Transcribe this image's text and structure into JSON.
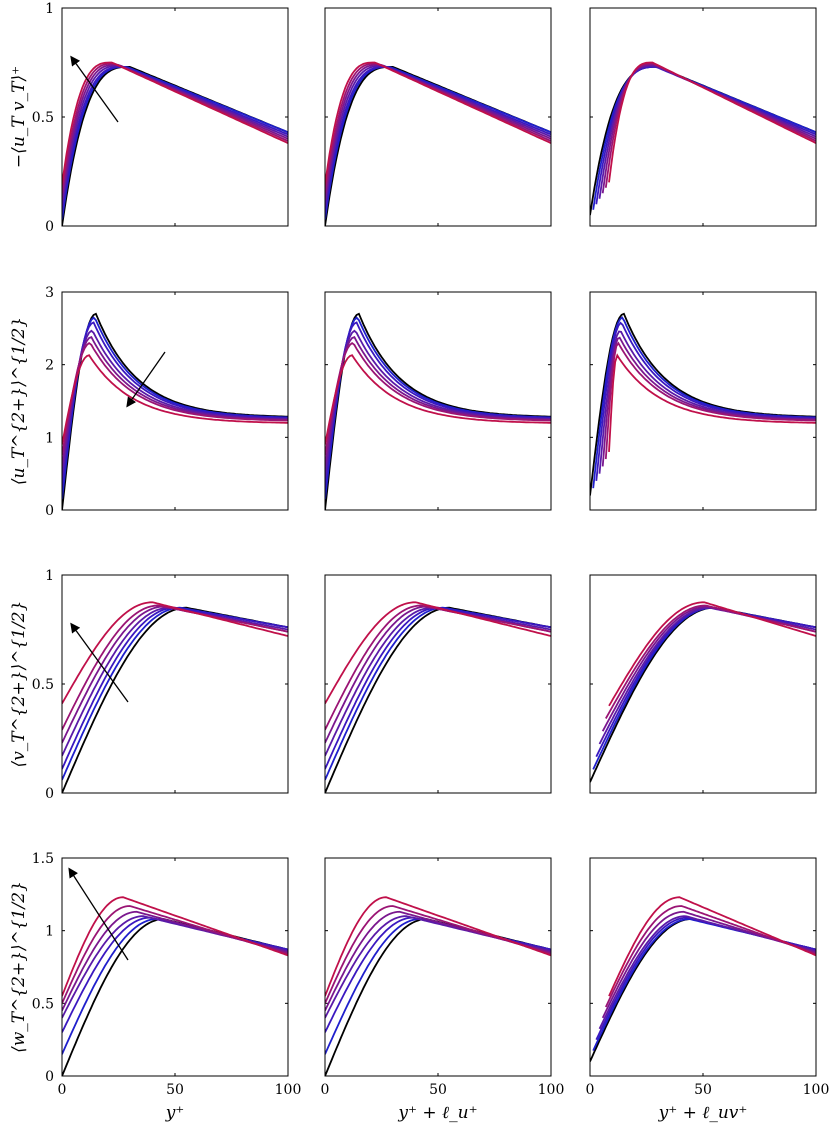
{
  "chart_data": {
    "type": "line",
    "layout": "4x3 grid of line plots",
    "colors": {
      "series": [
        "#000000",
        "#1f1fcc",
        "#3a18c0",
        "#5a1aa8",
        "#7a178e",
        "#9a1474",
        "#c0104a"
      ],
      "arrow": "#000000",
      "frame": "#000000"
    },
    "row_labels": [
      "−⟨u_T v_T⟩⁺",
      "⟨u_T^{2+}⟩^{1/2}",
      "⟨v_T^{2+}⟩^{1/2}",
      "⟨w_T^{2+}⟩^{1/2}"
    ],
    "column_labels": [
      "y⁺",
      "y⁺ + ℓ_u⁺",
      "y⁺ + ℓ_uv⁺"
    ],
    "x_range": [
      0,
      100
    ],
    "x_ticks": [
      "0",
      "50",
      "100"
    ],
    "rows": [
      {
        "ylim": [
          0,
          1
        ],
        "y_ticks": [
          "0",
          "0.5",
          "1"
        ]
      },
      {
        "ylim": [
          0,
          3
        ],
        "y_ticks": [
          "0",
          "1",
          "2",
          "3"
        ]
      },
      {
        "ylim": [
          0,
          1
        ],
        "y_ticks": [
          "0",
          "0.5",
          "1"
        ]
      },
      {
        "ylim": [
          0,
          1.5
        ],
        "y_ticks": [
          "0",
          "0.5",
          "1",
          "1.5"
        ]
      }
    ],
    "series_summary": [
      {
        "row": 1,
        "wall_values": [
          0,
          0.03,
          0.06,
          0.09,
          0.12,
          0.15,
          0.19
        ],
        "peak_values": [
          0.73,
          0.73,
          0.73,
          0.735,
          0.74,
          0.745,
          0.75
        ],
        "values_at_100": [
          0.43,
          0.43,
          0.42,
          0.41,
          0.4,
          0.39,
          0.38
        ]
      },
      {
        "row": 2,
        "wall_values": [
          0,
          0.15,
          0.3,
          0.45,
          0.6,
          0.75,
          0.9
        ],
        "peak_values": [
          2.7,
          2.65,
          2.58,
          2.47,
          2.38,
          2.3,
          2.13
        ],
        "values_at_100": [
          1.27,
          1.26,
          1.25,
          1.24,
          1.23,
          1.22,
          1.19
        ]
      },
      {
        "row": 3,
        "wall_values": [
          0,
          0.06,
          0.11,
          0.17,
          0.23,
          0.29,
          0.41
        ],
        "peak_values": [
          0.85,
          0.85,
          0.85,
          0.85,
          0.855,
          0.86,
          0.875
        ],
        "values_at_100": [
          0.76,
          0.76,
          0.76,
          0.75,
          0.74,
          0.74,
          0.72
        ]
      },
      {
        "row": 4,
        "wall_values": [
          0,
          0.15,
          0.3,
          0.4,
          0.45,
          0.5,
          0.55
        ],
        "peak_values": [
          1.08,
          1.08,
          1.09,
          1.1,
          1.13,
          1.17,
          1.23
        ],
        "values_at_100": [
          0.87,
          0.87,
          0.87,
          0.86,
          0.85,
          0.84,
          0.83
        ]
      }
    ]
  }
}
